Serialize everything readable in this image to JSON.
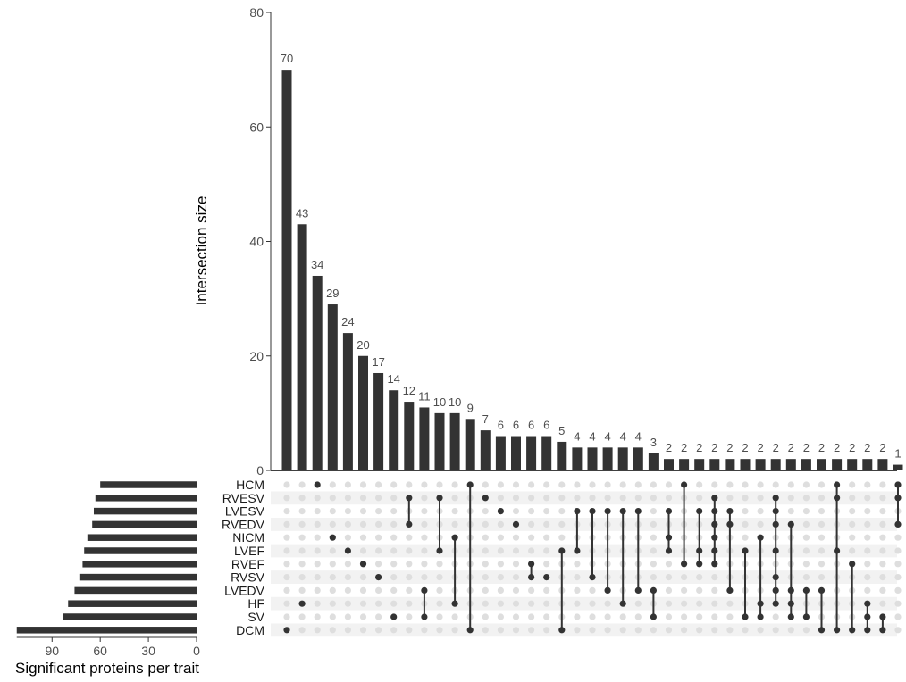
{
  "chart_data": {
    "type": "bar",
    "ylabel": "Intersection size",
    "set_size_xlabel": "Significant proteins per trait",
    "ylim": [
      0,
      80
    ],
    "yticks": [
      "0",
      "20",
      "40",
      "60",
      "80"
    ],
    "set_size_ticks": [
      "90",
      "60",
      "30",
      "0"
    ],
    "set_size_xlim": [
      0,
      112
    ],
    "sets": [
      "HCM",
      "RVESV",
      "LVESV",
      "RVEDV",
      "NICM",
      "LVEF",
      "RVEF",
      "RVSV",
      "LVEDV",
      "HF",
      "SV",
      "DCM"
    ],
    "set_sizes": [
      60,
      63,
      64,
      65,
      68,
      70,
      71,
      73,
      76,
      80,
      83,
      112
    ],
    "intersection_sizes": [
      70,
      43,
      34,
      29,
      24,
      20,
      17,
      14,
      12,
      11,
      10,
      10,
      9,
      7,
      6,
      6,
      6,
      6,
      5,
      4,
      4,
      4,
      4,
      4,
      3,
      2,
      2,
      2,
      2,
      2,
      2,
      2,
      2,
      2,
      2,
      2,
      2,
      2,
      2,
      2,
      1
    ],
    "intersection_labels": [
      "70",
      "43",
      "34",
      "29",
      "24",
      "20",
      "17",
      "14",
      "12",
      "11",
      "10",
      "10",
      "9",
      "7",
      "6",
      "6",
      "6",
      "6",
      "5",
      "4",
      "4",
      "4",
      "4",
      "4",
      "3",
      "2",
      "2",
      "2",
      "2",
      "2",
      "2",
      "2",
      "2",
      "2",
      "2",
      "2",
      "2",
      "2",
      "2",
      "2",
      "1"
    ],
    "intersections": [
      [
        "DCM"
      ],
      [
        "HF"
      ],
      [
        "HCM"
      ],
      [
        "NICM"
      ],
      [
        "LVEF"
      ],
      [
        "RVEF"
      ],
      [
        "RVSV"
      ],
      [
        "SV"
      ],
      [
        "RVESV",
        "RVEDV"
      ],
      [
        "LVEDV",
        "SV"
      ],
      [
        "RVESV",
        "LVEF"
      ],
      [
        "NICM",
        "HF"
      ],
      [
        "HCM",
        "DCM"
      ],
      [
        "RVESV"
      ],
      [
        "LVESV"
      ],
      [
        "RVEDV"
      ],
      [
        "RVEF",
        "RVSV"
      ],
      [
        "RVSV"
      ],
      [
        "LVEF",
        "DCM"
      ],
      [
        "LVESV",
        "LVEF"
      ],
      [
        "LVESV",
        "RVSV"
      ],
      [
        "LVESV",
        "LVEDV"
      ],
      [
        "LVESV",
        "HF"
      ],
      [
        "LVESV",
        "LVEDV"
      ],
      [
        "LVEDV",
        "SV"
      ],
      [
        "LVESV",
        "NICM",
        "LVEF"
      ],
      [
        "HCM",
        "RVEF"
      ],
      [
        "LVESV",
        "LVEF",
        "RVEF"
      ],
      [
        "RVESV",
        "LVESV",
        "RVEDV",
        "NICM",
        "LVEF",
        "RVEF"
      ],
      [
        "LVESV",
        "RVEDV",
        "LVEDV"
      ],
      [
        "LVEF",
        "SV"
      ],
      [
        "NICM",
        "HF",
        "SV"
      ],
      [
        "RVESV",
        "LVESV",
        "RVEDV",
        "LVEF",
        "RVSV",
        "LVEDV",
        "HF"
      ],
      [
        "RVEDV",
        "LVEDV",
        "HF",
        "SV"
      ],
      [
        "LVEDV",
        "SV"
      ],
      [
        "LVEDV",
        "DCM"
      ],
      [
        "HCM",
        "RVESV",
        "LVEF",
        "DCM"
      ],
      [
        "RVEF",
        "DCM"
      ],
      [
        "HF",
        "SV",
        "DCM"
      ],
      [
        "SV",
        "DCM"
      ],
      [
        "HCM",
        "RVESV",
        "RVEDV"
      ]
    ]
  }
}
